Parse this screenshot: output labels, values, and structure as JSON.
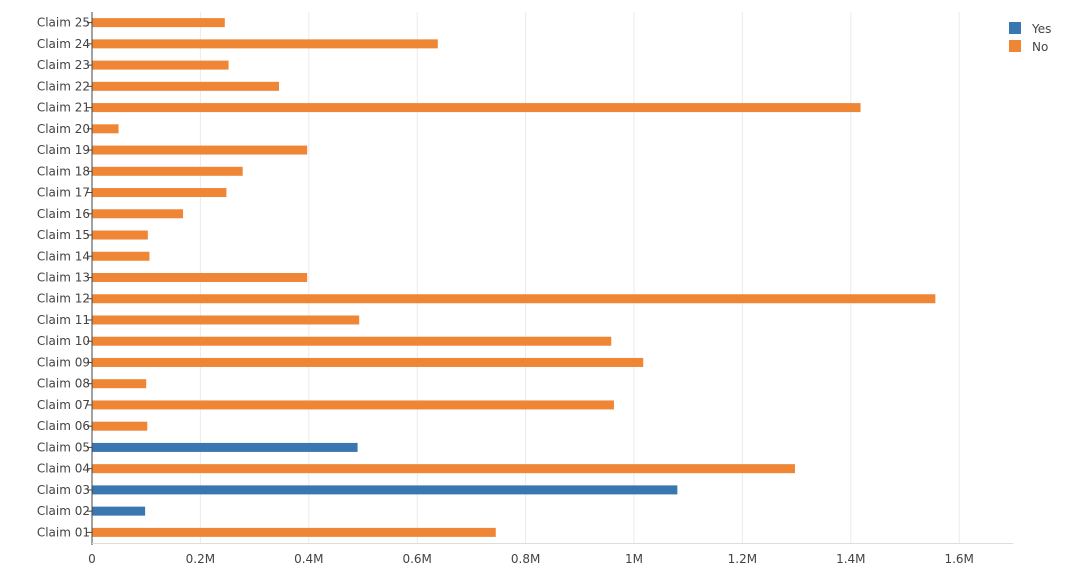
{
  "chart_data": {
    "type": "bar",
    "orientation": "horizontal",
    "barmode": "overlay",
    "categories": [
      "Claim 01",
      "Claim 02",
      "Claim 03",
      "Claim 04",
      "Claim 05",
      "Claim 06",
      "Claim 07",
      "Claim 08",
      "Claim 09",
      "Claim 10",
      "Claim 11",
      "Claim 12",
      "Claim 13",
      "Claim 14",
      "Claim 15",
      "Claim 16",
      "Claim 17",
      "Claim 18",
      "Claim 19",
      "Claim 20",
      "Claim 21",
      "Claim 22",
      "Claim 23",
      "Claim 24",
      "Claim 25"
    ],
    "series": [
      {
        "name": "Yes",
        "color": "#3a76af",
        "values": [
          null,
          98000,
          1080000,
          null,
          490000,
          null,
          null,
          null,
          null,
          null,
          null,
          null,
          null,
          null,
          null,
          null,
          null,
          null,
          null,
          null,
          null,
          null,
          null,
          null,
          null
        ]
      },
      {
        "name": "No",
        "color": "#ef8636",
        "values": [
          745000,
          null,
          null,
          1297000,
          null,
          102000,
          963000,
          100000,
          1017000,
          958000,
          493000,
          1556000,
          397000,
          106000,
          103000,
          168000,
          248000,
          278000,
          397000,
          49000,
          1418000,
          345000,
          252000,
          638000,
          245000
        ]
      }
    ],
    "xlim": [
      0,
      1700000
    ],
    "xticks": [
      0,
      200000,
      400000,
      600000,
      800000,
      1000000,
      1200000,
      1400000,
      1600000
    ],
    "xtick_labels": [
      "0",
      "0.2M",
      "0.4M",
      "0.6M",
      "0.8M",
      "1M",
      "1.2M",
      "1.4M",
      "1.6M"
    ],
    "grid": true,
    "legend": {
      "placement": "top-right",
      "entries": [
        "Yes",
        "No"
      ]
    },
    "title": "",
    "xlabel": "",
    "ylabel": ""
  }
}
